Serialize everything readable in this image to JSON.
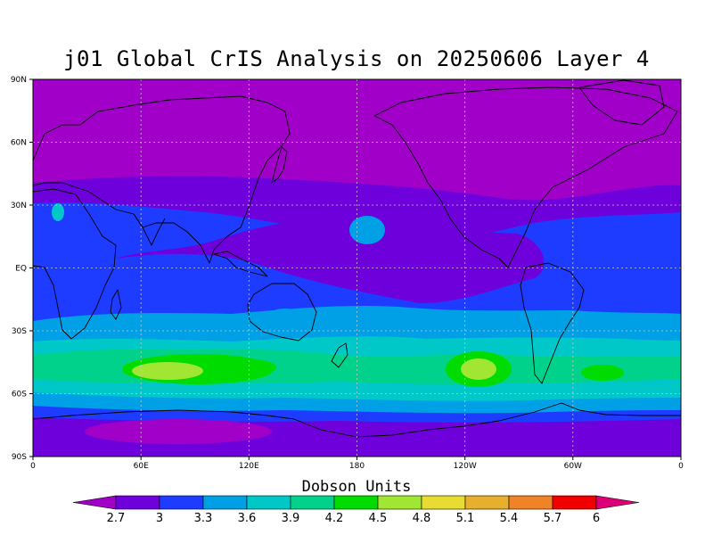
{
  "title": "j01 Global CrIS Analysis on 20250606 Layer 4",
  "colorbar": {
    "title": "Dobson Units",
    "levels": [
      "2.7",
      "3",
      "3.3",
      "3.6",
      "3.9",
      "4.2",
      "4.5",
      "4.8",
      "5.1",
      "5.4",
      "5.7",
      "6"
    ],
    "colors": [
      "#a000c8",
      "#6e00dc",
      "#1e3cff",
      "#00a0e6",
      "#00c8c8",
      "#00d28c",
      "#00dc00",
      "#a0e632",
      "#e6dc32",
      "#e6af2d",
      "#f08228",
      "#f00000",
      "#dc0078"
    ]
  },
  "map": {
    "y_ticks": [
      "90N",
      "60N",
      "30N",
      "EQ",
      "30S",
      "60S",
      "90S"
    ],
    "x_ticks": [
      "0",
      "60E",
      "120E",
      "180",
      "120W",
      "60W",
      "0"
    ],
    "grid": true
  }
}
